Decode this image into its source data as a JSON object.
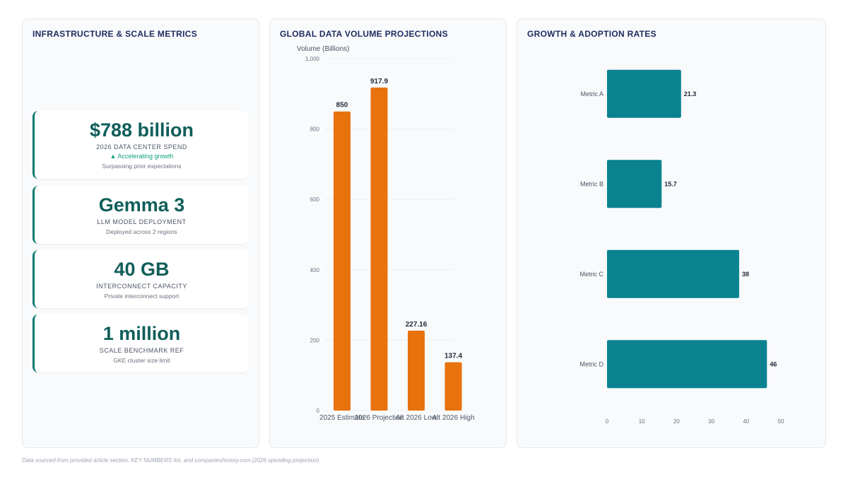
{
  "footer": "Data sourced from provided article section, KEY NUMBERS list, and companieshistory.com (2026 spending projection).",
  "panels": {
    "metrics": {
      "title": "INFRASTRUCTURE & SCALE METRICS",
      "cards": [
        {
          "value": "$788 billion",
          "label": "2026 DATA CENTER SPEND",
          "trend": "▲ Accelerating growth",
          "note": "Surpassing prior expectations"
        },
        {
          "value": "Gemma 3",
          "label": "LLM MODEL DEPLOYMENT",
          "note": "Deployed across 2 regions"
        },
        {
          "value": "40 GB",
          "label": "INTERCONNECT CAPACITY",
          "note": "Private interconnect support"
        },
        {
          "value": "1 million",
          "label": "SCALE BENCHMARK REF",
          "note": "GKE cluster size limit"
        }
      ]
    },
    "volume": {
      "title": "GLOBAL DATA VOLUME PROJECTIONS"
    },
    "growth": {
      "title": "GROWTH & ADOPTION RATES"
    }
  },
  "colors": {
    "bar_orange": "#e8720c",
    "bar_teal": "#0b8290",
    "title": "#1e2a5e"
  },
  "chart_data": [
    {
      "type": "bar",
      "title": "GLOBAL DATA VOLUME PROJECTIONS",
      "ylabel": "Volume (Billions)",
      "xlabel": "",
      "categories": [
        "2025 Estimate",
        "2026 Projection",
        "Alt 2026 Low",
        "Alt 2026 High"
      ],
      "values": [
        850,
        917.9,
        227.16,
        137.4
      ],
      "data_labels": [
        "850",
        "917.9",
        "227.16",
        "137.4"
      ],
      "ylim": [
        0,
        1000
      ],
      "yticks": [
        0,
        200,
        400,
        600,
        800,
        1000
      ],
      "ytick_labels": [
        "0",
        "200",
        "400",
        "600",
        "800",
        "1,000"
      ],
      "grid": true,
      "color": "#e8720c"
    },
    {
      "type": "bar",
      "orientation": "horizontal",
      "title": "GROWTH & ADOPTION RATES",
      "categories": [
        "Metric A",
        "Metric B",
        "Metric C",
        "Metric D"
      ],
      "values": [
        21.3,
        15.7,
        38,
        46
      ],
      "data_labels": [
        "21.3",
        "15.7",
        "38",
        "46"
      ],
      "xlim": [
        0,
        50
      ],
      "xticks": [
        0,
        10,
        20,
        30,
        40,
        50
      ],
      "xtick_labels": [
        "0",
        "10",
        "20",
        "30",
        "40",
        "50"
      ],
      "grid": false,
      "color": "#0b8290"
    }
  ]
}
